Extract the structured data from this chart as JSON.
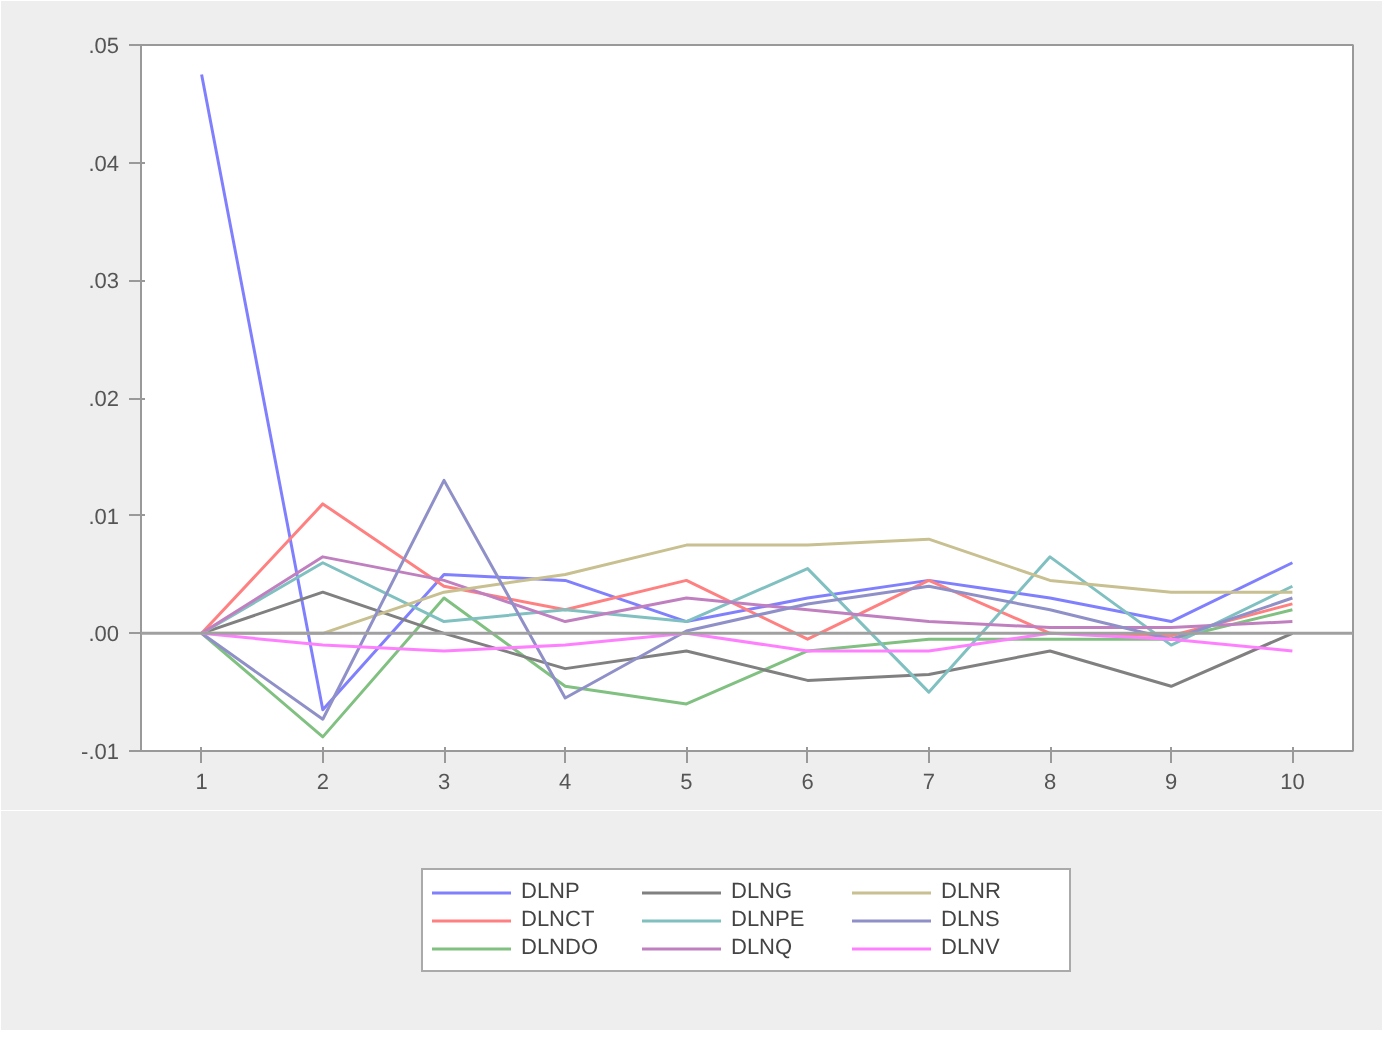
{
  "chart_data": {
    "type": "line",
    "categories": [
      "1",
      "2",
      "3",
      "4",
      "5",
      "6",
      "7",
      "8",
      "9",
      "10"
    ],
    "series": [
      {
        "name": "DLNP",
        "color": "#8080ff",
        "values": [
          0.0475,
          -0.0065,
          0.005,
          0.0045,
          0.001,
          0.003,
          0.0045,
          0.003,
          0.001,
          0.006
        ]
      },
      {
        "name": "DLNCT",
        "color": "#ff8080",
        "values": [
          0,
          0.011,
          0.004,
          0.002,
          0.0045,
          -0.0005,
          0.0045,
          0,
          -0.0002,
          0.0025
        ]
      },
      {
        "name": "DLNDO",
        "color": "#80c080",
        "values": [
          0,
          -0.0088,
          0.003,
          -0.0045,
          -0.006,
          -0.0015,
          -0.0005,
          -0.0005,
          -0.0005,
          0.002
        ]
      },
      {
        "name": "DLNG",
        "color": "#808080",
        "values": [
          0,
          0.0035,
          0,
          -0.003,
          -0.0015,
          -0.004,
          -0.0035,
          -0.0015,
          -0.0045,
          0
        ]
      },
      {
        "name": "DLNPE",
        "color": "#80c0c0",
        "values": [
          0,
          0.006,
          0.001,
          0.002,
          0.001,
          0.0055,
          -0.005,
          0.0065,
          -0.001,
          0.004
        ]
      },
      {
        "name": "DLNQ",
        "color": "#c080c0",
        "values": [
          0,
          0.0065,
          0.0045,
          0.001,
          0.003,
          0.002,
          0.001,
          0.0005,
          0.0005,
          0.001
        ]
      },
      {
        "name": "DLNR",
        "color": "#c8c090",
        "values": [
          0,
          0,
          0.0035,
          0.005,
          0.0075,
          0.0075,
          0.008,
          0.0045,
          0.0035,
          0.0035
        ]
      },
      {
        "name": "DLNS",
        "color": "#9090c8",
        "values": [
          0,
          -0.0073,
          0.013,
          -0.0055,
          0.0002,
          0.0025,
          0.004,
          0.002,
          -0.0005,
          0.003
        ]
      },
      {
        "name": "DLNV",
        "color": "#ff80ff",
        "values": [
          0,
          -0.001,
          -0.0015,
          -0.001,
          0,
          -0.0015,
          -0.0015,
          0,
          -0.0005,
          -0.0015
        ]
      }
    ],
    "ylim": [
      -0.01,
      0.05
    ],
    "yticks": [
      {
        "value": -0.01,
        "label": "-.01"
      },
      {
        "value": 0,
        "label": ".00"
      },
      {
        "value": 0.01,
        "label": ".01"
      },
      {
        "value": 0.02,
        "label": ".02"
      },
      {
        "value": 0.03,
        "label": ".03"
      },
      {
        "value": 0.04,
        "label": ".04"
      },
      {
        "value": 0.05,
        "label": ".05"
      }
    ],
    "ref_lines": [
      {
        "axis": "y",
        "value": 0,
        "color": "#a0a0a0"
      }
    ],
    "grid": false,
    "legend": "bottom"
  }
}
